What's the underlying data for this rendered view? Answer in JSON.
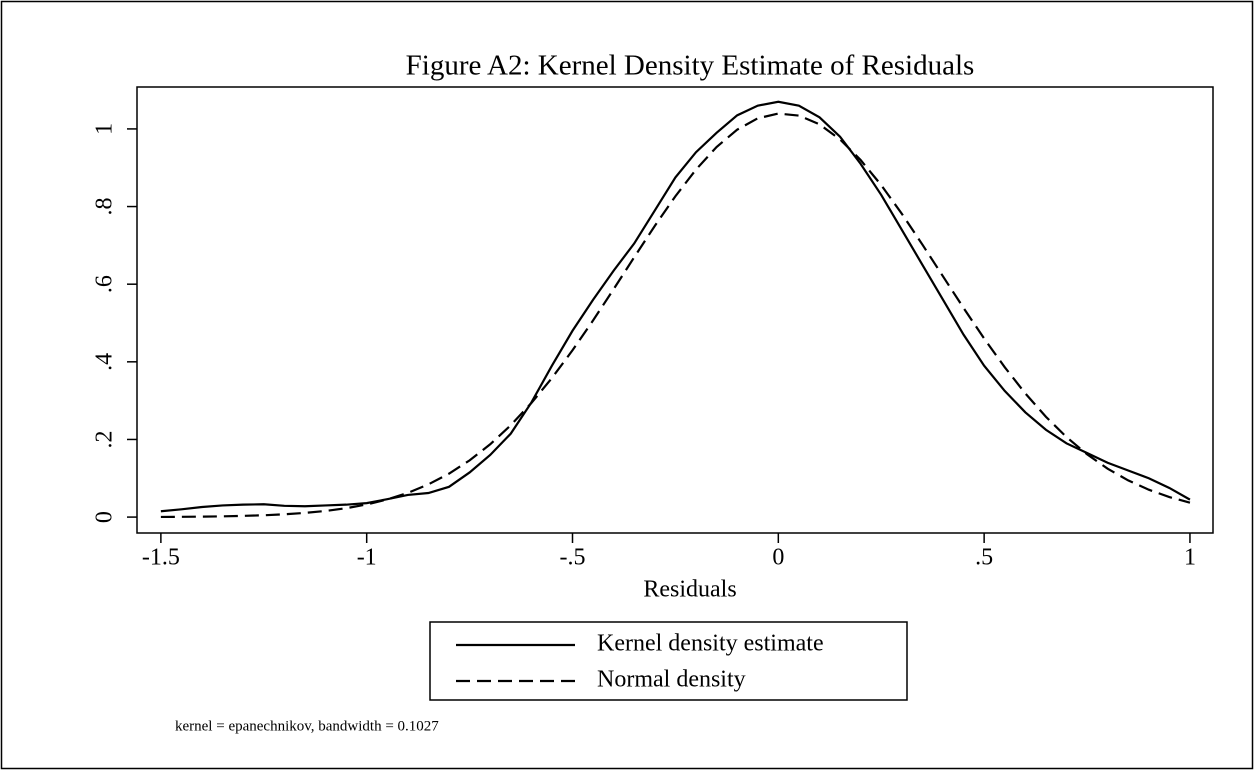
{
  "chart_data": {
    "type": "line",
    "title": "Figure A2: Kernel Density Estimate of Residuals",
    "x_label": "Residuals",
    "note": "kernel = epanechnikov, bandwidth = 0.1027",
    "x": [
      -1.5,
      -1.45,
      -1.4,
      -1.35,
      -1.3,
      -1.25,
      -1.2,
      -1.15,
      -1.1,
      -1.05,
      -1.0,
      -0.95,
      -0.9,
      -0.85,
      -0.8,
      -0.75,
      -0.7,
      -0.65,
      -0.6,
      -0.55,
      -0.5,
      -0.45,
      -0.4,
      -0.35,
      -0.3,
      -0.25,
      -0.2,
      -0.15,
      -0.1,
      -0.05,
      0,
      0.05,
      0.1,
      0.15,
      0.2,
      0.25,
      0.3,
      0.35,
      0.4,
      0.45,
      0.5,
      0.55,
      0.6,
      0.65,
      0.7,
      0.75,
      0.8,
      0.85,
      0.9,
      0.95,
      1.0
    ],
    "series": [
      {
        "name": "Kernel density estimate",
        "color": "#000000",
        "dash": "solid",
        "values": [
          0.015,
          0.02,
          0.026,
          0.03,
          0.032,
          0.033,
          0.029,
          0.028,
          0.03,
          0.032,
          0.036,
          0.046,
          0.057,
          0.062,
          0.078,
          0.115,
          0.16,
          0.215,
          0.295,
          0.39,
          0.48,
          0.56,
          0.635,
          0.705,
          0.79,
          0.875,
          0.94,
          0.99,
          1.035,
          1.06,
          1.07,
          1.06,
          1.03,
          0.98,
          0.91,
          0.83,
          0.74,
          0.65,
          0.56,
          0.47,
          0.39,
          0.325,
          0.27,
          0.225,
          0.19,
          0.165,
          0.14,
          0.12,
          0.1,
          0.075,
          0.045
        ]
      },
      {
        "name": "Normal density",
        "color": "#000000",
        "dash": "dashed",
        "values": [
          0.0004,
          0.0007,
          0.0012,
          0.0019,
          0.0031,
          0.0047,
          0.0072,
          0.0108,
          0.0158,
          0.0228,
          0.0325,
          0.0454,
          0.0624,
          0.0843,
          0.1119,
          0.1461,
          0.1875,
          0.2367,
          0.2938,
          0.3583,
          0.4297,
          0.5067,
          0.5874,
          0.6696,
          0.7503,
          0.8266,
          0.8953,
          0.9534,
          0.9981,
          1.0273,
          1.0396,
          1.0344,
          1.0118,
          0.973,
          0.9199,
          0.8552,
          0.7815,
          0.7021,
          0.6203,
          0.5387,
          0.46,
          0.3862,
          0.3187,
          0.2585,
          0.2062,
          0.1618,
          0.1247,
          0.0945,
          0.0705,
          0.0516,
          0.0372
        ]
      }
    ],
    "xlim": [
      -1.558,
      1.056
    ],
    "xticks": [
      -1.5,
      -1,
      {
        "value": -0.5,
        "label": "-.5"
      },
      0,
      {
        "value": 0.5,
        "label": ".5"
      },
      1
    ],
    "ylim": [
      -0.041,
      1.108
    ],
    "yticks": [
      0,
      {
        "value": 0.2,
        "label": ".2"
      },
      {
        "value": 0.4,
        "label": ".4"
      },
      {
        "value": 0.6,
        "label": ".6"
      },
      {
        "value": 0.8,
        "label": ".8"
      },
      1
    ],
    "grid": false,
    "legend_position": "bottom"
  }
}
